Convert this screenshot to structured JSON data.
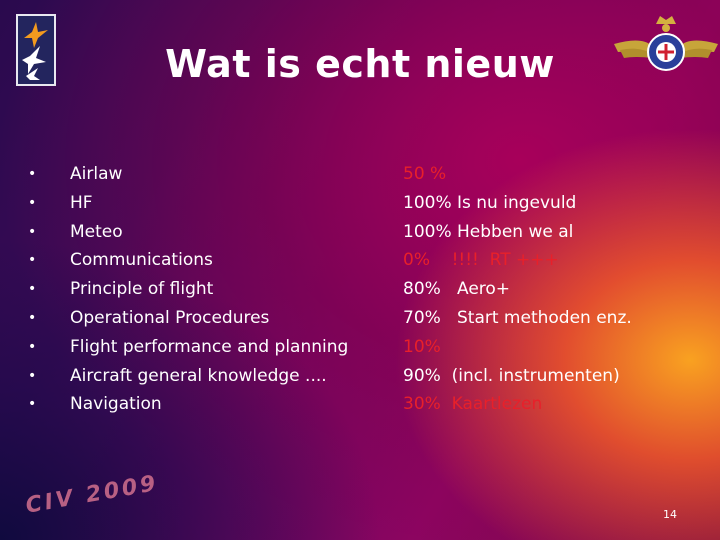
{
  "slide": {
    "title": "Wat is echt nieuw",
    "watermark": "CIV 2009",
    "page_number": "14"
  },
  "left_items": [
    {
      "label": "Airlaw"
    },
    {
      "label": "HF"
    },
    {
      "label": "Meteo"
    },
    {
      "label": "Communications"
    },
    {
      "label": "Principle of flight"
    },
    {
      "label": "Operational Procedures"
    },
    {
      "label": "Flight performance and planning"
    },
    {
      "label": "Aircraft general knowledge ...."
    },
    {
      "label": "Navigation"
    }
  ],
  "right_items": [
    {
      "text": "50 %",
      "color": "red"
    },
    {
      "text": "100% Is nu ingevuld",
      "color": "white"
    },
    {
      "text": "100% Hebben we al",
      "color": "white"
    },
    {
      "text": "0%    !!!!  RT +++",
      "color": "red"
    },
    {
      "text": "80%   Aero+",
      "color": "white"
    },
    {
      "text": "70%   Start methoden enz.",
      "color": "white"
    },
    {
      "text": "10%",
      "color": "red"
    },
    {
      "text": "90%  (incl. instrumenten)",
      "color": "white"
    },
    {
      "text": "30%  Kaartlezen",
      "color": "red"
    }
  ],
  "colors": {
    "red": "#e8202a",
    "white": "#ffffff",
    "accent_orange": "#f5a623"
  },
  "icons": {
    "left_logo": "bird-emblem-icon",
    "right_logo": "winged-crest-emblem-icon",
    "bullet": "bullet-dot"
  }
}
